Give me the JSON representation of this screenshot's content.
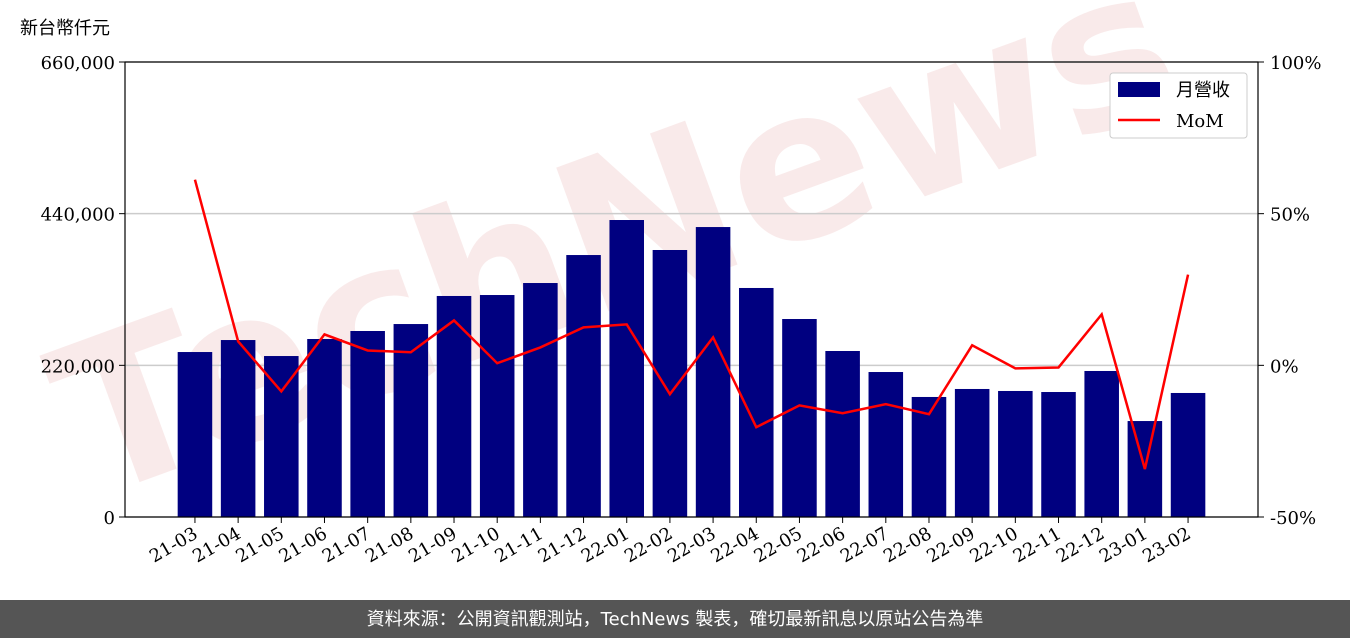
{
  "chart_data": {
    "type": "bar_line",
    "y_label": "新台幣仟元",
    "watermark": "TechNews",
    "footer": "資料來源：公開資訊觀測站，TechNews 製表，確切最新訊息以原站公告為準",
    "categories": [
      "21-03",
      "21-04",
      "21-05",
      "21-06",
      "21-07",
      "21-08",
      "21-09",
      "21-10",
      "21-11",
      "21-12",
      "22-01",
      "22-02",
      "22-03",
      "22-04",
      "22-05",
      "22-06",
      "22-07",
      "22-08",
      "22-09",
      "22-10",
      "22-11",
      "22-12",
      "23-01",
      "23-02"
    ],
    "series": [
      {
        "name": "月營收",
        "type": "bar",
        "color": "#000080",
        "values": [
          239300,
          256700,
          233500,
          258200,
          269800,
          279900,
          320600,
          322000,
          339400,
          380000,
          430800,
          387300,
          420600,
          332200,
          287200,
          240800,
          210300,
          174100,
          185700,
          182800,
          181300,
          211800,
          139200,
          179900
        ]
      },
      {
        "name": "MoM",
        "type": "line",
        "axis": "y2",
        "color": "#ff0000",
        "values": [
          61.2,
          7.9,
          -8.6,
          10.2,
          4.9,
          4.3,
          14.8,
          0.7,
          5.9,
          12.5,
          13.5,
          -9.5,
          9.2,
          -20.4,
          -13.2,
          -15.8,
          -12.8,
          -16.1,
          6.6,
          -1.0,
          -0.7,
          16.8,
          -34.2,
          29.9
        ]
      }
    ],
    "ylim": [
      0,
      660000
    ],
    "yticks": [
      0,
      {
        "value": 220000,
        "label": "220,000"
      },
      {
        "value": 440000,
        "label": "440,000"
      },
      {
        "value": 660000,
        "label": "660,000"
      }
    ],
    "y2lim": [
      -50,
      100
    ],
    "y2ticks": [
      {
        "value": -50,
        "label": "-50%"
      },
      {
        "value": 0,
        "label": "0%"
      },
      {
        "value": 50,
        "label": "50%"
      },
      {
        "value": 100,
        "label": "100%"
      }
    ],
    "grid": true,
    "legend": "upper right"
  }
}
